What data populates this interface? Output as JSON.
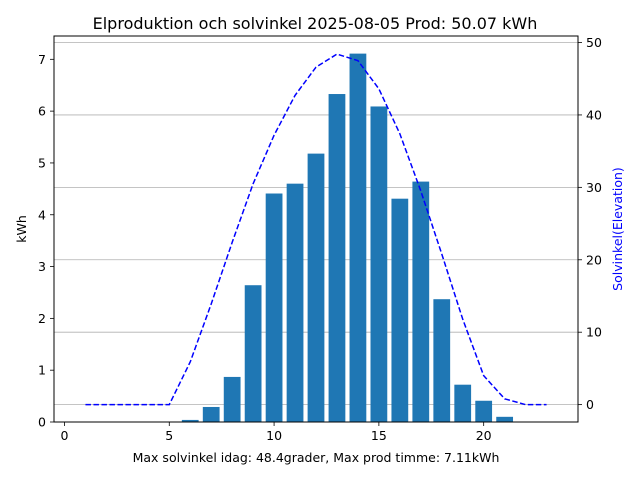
{
  "chart_data": {
    "type": "bar",
    "title": "Elproduktion och solvinkel 2025-08-05 Prod: 50.07 kWh",
    "xlabel": "Max solvinkel idag: 48.4grader, Max prod timme: 7.11kWh",
    "ylabel": "kWh",
    "y2label": "Solvinkel(Elevation)",
    "xlim": [
      -0.5,
      24.5
    ],
    "ylim": [
      0,
      7.45
    ],
    "y2lim": [
      -2.4,
      50.9
    ],
    "x_ticks": [
      0,
      5,
      10,
      15,
      20
    ],
    "y_ticks": [
      0,
      1,
      2,
      3,
      4,
      5,
      6,
      7
    ],
    "y2_ticks": [
      0,
      10,
      20,
      30,
      40,
      50
    ],
    "grid": "horizontal lines at right-axis ticks",
    "bar_color": "#1f77b4",
    "line_color": "#0000ff",
    "line_style": "dashed",
    "series": [
      {
        "type": "bar",
        "axis": "left",
        "x": [
          6,
          7,
          8,
          9,
          10,
          11,
          12,
          13,
          14,
          15,
          16,
          17,
          18,
          19,
          20,
          21
        ],
        "values": [
          0.04,
          0.29,
          0.87,
          2.64,
          4.41,
          4.6,
          5.18,
          6.33,
          7.11,
          6.09,
          4.31,
          4.64,
          2.37,
          0.72,
          0.41,
          0.1
        ]
      },
      {
        "type": "line",
        "axis": "right",
        "x": [
          1,
          2,
          3,
          4,
          5,
          6,
          7,
          8,
          9,
          10,
          11,
          12,
          13,
          14,
          15,
          16,
          17,
          18,
          19,
          20,
          21,
          22,
          23
        ],
        "values": [
          0,
          0,
          0,
          0,
          0,
          5.9,
          13.9,
          22.4,
          30.5,
          37.2,
          42.7,
          46.6,
          48.4,
          47.5,
          43.6,
          37.4,
          29.5,
          20.8,
          11.8,
          4.0,
          0.8,
          0,
          0
        ]
      }
    ]
  }
}
